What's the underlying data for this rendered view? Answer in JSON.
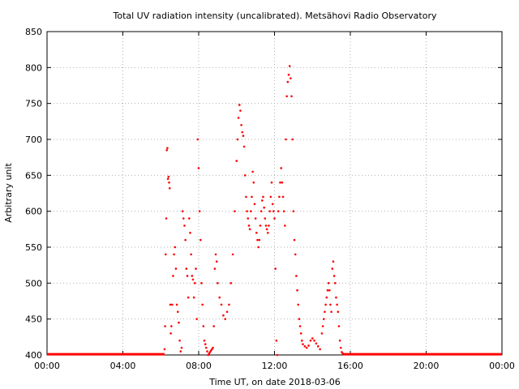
{
  "chart_data": {
    "type": "scatter",
    "title": "Total UV radiation intensity (uncalibrated). Metsähovi Radio Observatory",
    "xlabel": "Time UT, on date 2018-03-06",
    "ylabel": "Arbitrary unit",
    "xlim": [
      0,
      24
    ],
    "ylim": [
      400,
      850
    ],
    "x_ticks": [
      0,
      4,
      8,
      12,
      16,
      20,
      24
    ],
    "x_tick_labels": [
      "00:00",
      "04:00",
      "08:00",
      "12:00",
      "16:00",
      "20:00",
      "00:00"
    ],
    "y_ticks": [
      400,
      450,
      500,
      550,
      600,
      650,
      700,
      750,
      800,
      850
    ],
    "y_tick_labels": [
      "400",
      "450",
      "500",
      "550",
      "600",
      "650",
      "700",
      "750",
      "800",
      "850"
    ],
    "grid": true,
    "marker_color": "#ff0000",
    "baseline": {
      "x_start": 0,
      "x_end": 24,
      "y": 401
    },
    "series": [
      {
        "x": [
          6.2,
          6.23,
          6.26,
          6.29,
          6.32,
          6.35,
          6.38,
          6.41,
          6.44,
          6.47,
          6.5,
          6.53,
          6.56,
          6.6,
          6.65,
          6.7,
          6.75,
          6.8,
          6.85,
          6.9,
          6.95,
          7.0,
          7.05,
          7.1,
          7.15,
          7.2,
          7.25,
          7.3,
          7.35,
          7.4,
          7.45,
          7.5,
          7.55,
          7.6,
          7.65,
          7.7,
          7.75,
          7.8,
          7.85,
          7.9,
          7.95,
          8.0,
          8.05,
          8.1,
          8.15,
          8.2,
          8.25,
          8.3,
          8.35,
          8.4,
          8.45,
          8.5,
          8.55,
          8.6,
          8.65,
          8.7,
          8.75,
          8.8,
          8.85,
          8.9,
          8.95,
          9.0,
          9.1,
          9.2,
          9.3,
          9.4,
          9.5,
          9.6,
          9.7,
          9.8,
          9.9,
          10.0,
          10.05,
          10.1,
          10.15,
          10.2,
          10.25,
          10.3,
          10.35,
          10.4,
          10.45,
          10.5,
          10.55,
          10.6,
          10.65,
          10.7,
          10.75,
          10.8,
          10.85,
          10.9,
          10.95,
          11.0,
          11.05,
          11.1,
          11.15,
          11.2,
          11.25,
          11.3,
          11.35,
          11.4,
          11.45,
          11.5,
          11.55,
          11.6,
          11.65,
          11.7,
          11.75,
          11.8,
          11.85,
          11.9,
          11.95,
          12.0,
          12.05,
          12.1,
          12.15,
          12.2,
          12.25,
          12.3,
          12.35,
          12.4,
          12.45,
          12.5,
          12.55,
          12.6,
          12.65,
          12.7,
          12.75,
          12.8,
          12.85,
          12.9,
          12.95,
          13.0,
          13.05,
          13.1,
          13.15,
          13.2,
          13.25,
          13.3,
          13.35,
          13.4,
          13.45,
          13.5,
          13.6,
          13.7,
          13.8,
          13.9,
          14.0,
          14.1,
          14.2,
          14.3,
          14.4,
          14.5,
          14.55,
          14.6,
          14.65,
          14.7,
          14.75,
          14.8,
          14.85,
          14.9,
          14.95,
          15.0,
          15.05,
          15.1,
          15.15,
          15.2,
          15.25,
          15.3,
          15.35,
          15.4,
          15.45,
          15.5,
          15.55,
          15.6
        ],
        "y": [
          408,
          440,
          540,
          590,
          685,
          688,
          645,
          648,
          640,
          632,
          470,
          430,
          440,
          470,
          510,
          540,
          550,
          520,
          470,
          460,
          445,
          420,
          405,
          410,
          600,
          590,
          580,
          560,
          520,
          510,
          480,
          590,
          570,
          540,
          510,
          505,
          480,
          500,
          520,
          450,
          700,
          660,
          600,
          560,
          500,
          470,
          440,
          420,
          415,
          410,
          405,
          400,
          402,
          404,
          406,
          408,
          410,
          440,
          520,
          540,
          530,
          500,
          480,
          470,
          455,
          450,
          460,
          470,
          500,
          540,
          600,
          670,
          700,
          730,
          748,
          740,
          720,
          710,
          705,
          690,
          650,
          620,
          600,
          590,
          580,
          575,
          600,
          620,
          655,
          640,
          610,
          590,
          570,
          560,
          550,
          560,
          580,
          600,
          615,
          620,
          605,
          590,
          580,
          575,
          570,
          580,
          600,
          620,
          640,
          610,
          600,
          590,
          520,
          420,
          400,
          600,
          620,
          640,
          660,
          640,
          620,
          600,
          580,
          700,
          760,
          780,
          790,
          802,
          785,
          760,
          700,
          600,
          560,
          540,
          510,
          490,
          470,
          450,
          440,
          430,
          420,
          415,
          412,
          410,
          413,
          420,
          423,
          420,
          416,
          412,
          408,
          430,
          440,
          450,
          460,
          470,
          480,
          490,
          500,
          490,
          470,
          460,
          520,
          530,
          510,
          500,
          480,
          470,
          460,
          440,
          420,
          410,
          404,
          402
        ]
      }
    ]
  }
}
